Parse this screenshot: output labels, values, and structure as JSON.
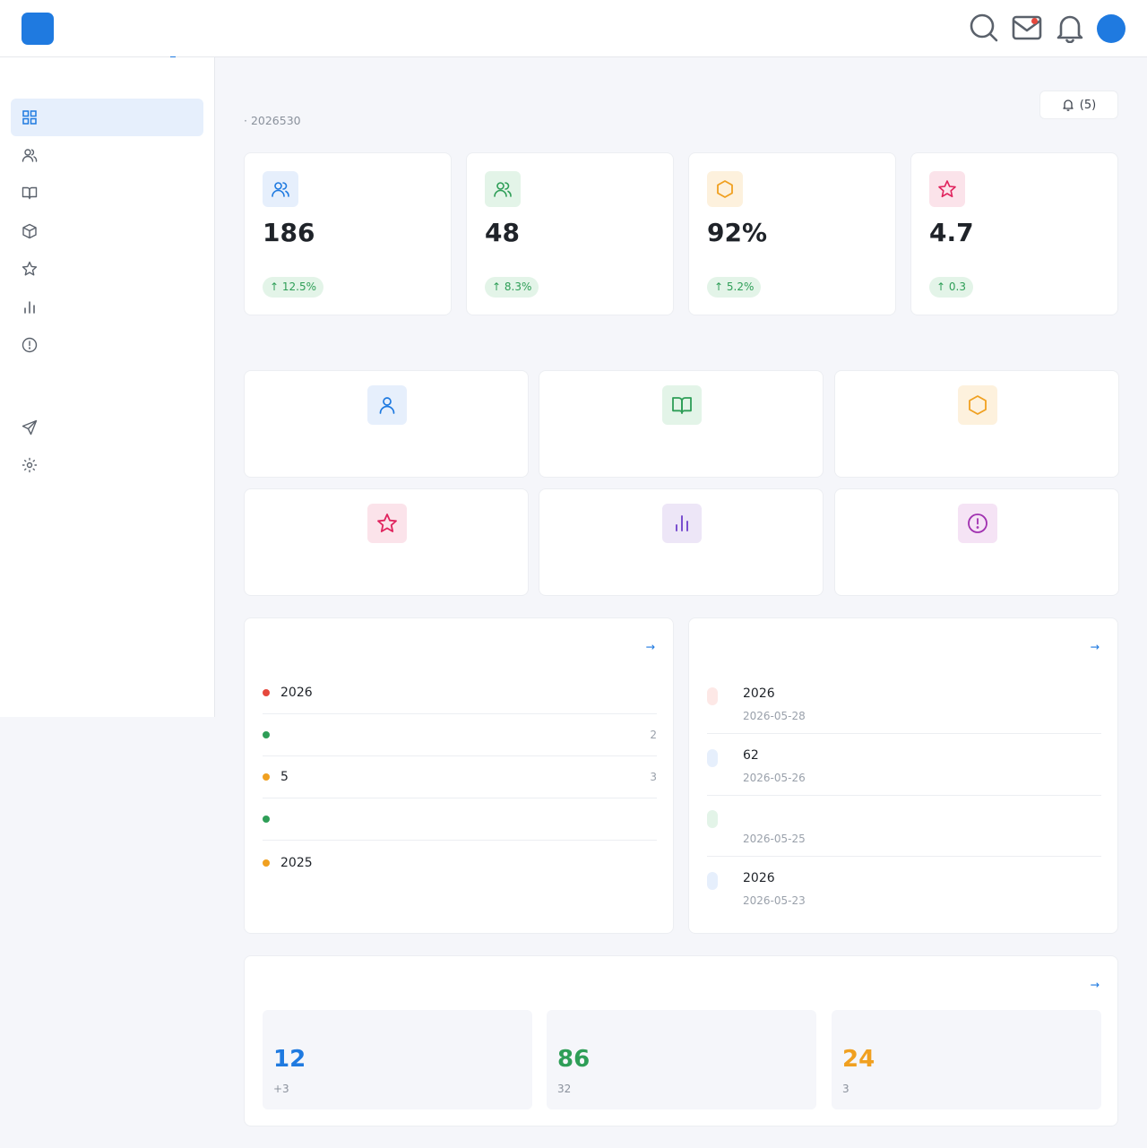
{
  "header": {
    "logo_glyph": "",
    "app_title": "",
    "nav": [
      {
        "label": "",
        "active": true
      },
      {
        "label": ""
      },
      {
        "label": ""
      },
      {
        "label": ""
      },
      {
        "label": ""
      }
    ],
    "avatar_text": "",
    "icons": [
      "search-icon",
      "mail-icon",
      "bell-icon"
    ],
    "mail_unread_dot": true
  },
  "sidebar": {
    "group1_label": "",
    "group2_label": "",
    "items": [
      {
        "label": "",
        "icon": "grid-icon",
        "active": true
      },
      {
        "label": "",
        "icon": "users-icon"
      },
      {
        "label": "",
        "icon": "book-icon"
      },
      {
        "label": "",
        "icon": "cube-icon"
      },
      {
        "label": "",
        "icon": "star-icon"
      },
      {
        "label": "",
        "icon": "bar-chart-icon"
      },
      {
        "label": "",
        "icon": "info-icon"
      }
    ],
    "items2": [
      {
        "label": "",
        "icon": "send-icon"
      },
      {
        "label": "",
        "icon": "settings-icon"
      }
    ]
  },
  "page": {
    "title": "",
    "subtitle": " · 2026530",
    "notice_button": "(5)"
  },
  "stats": [
    {
      "value": "186",
      "label": "",
      "trend": "↑ 12.5% ",
      "icon": "users-icon",
      "color": "#1f7ae0",
      "bg": "#e6effc"
    },
    {
      "value": "48",
      "label": "",
      "trend": "↑ 8.3% ",
      "icon": "users-icon",
      "color": "#2e9e57",
      "bg": "#e3f4e8"
    },
    {
      "value": "92%",
      "label": "",
      "trend": "↑ 5.2% ",
      "icon": "hexagon-icon",
      "color": "#f0a020",
      "bg": "#fdf1dd"
    },
    {
      "value": "4.7",
      "label": "",
      "trend": "↑ 0.3 ",
      "icon": "star-icon",
      "color": "#e0245e",
      "bg": "#fbe3ea"
    }
  ],
  "quick": {
    "title": "",
    "items": [
      {
        "title": "",
        "sub": "",
        "icon": "user-icon",
        "color": "#1f7ae0",
        "bg": "#e6effc"
      },
      {
        "title": "",
        "sub": "",
        "icon": "book-icon",
        "color": "#2e9e57",
        "bg": "#e3f4e8"
      },
      {
        "title": "",
        "sub": "",
        "icon": "hexagon-icon",
        "color": "#f0a020",
        "bg": "#fdf1dd"
      },
      {
        "title": "",
        "sub": "",
        "icon": "star-icon",
        "color": "#e0245e",
        "bg": "#fbe3ea"
      },
      {
        "title": "",
        "sub": "",
        "icon": "bar-chart-icon",
        "color": "#7a4fcf",
        "bg": "#ede6f7"
      },
      {
        "title": "",
        "sub": "",
        "icon": "info-icon",
        "color": "#a030b0",
        "bg": "#f5e3f5"
      }
    ]
  },
  "todo": {
    "title": "",
    "link": " →",
    "items": [
      {
        "text": "2026",
        "time": "",
        "dot": "#e5483d"
      },
      {
        "text": "",
        "time": "2",
        "dot": "#2e9e57"
      },
      {
        "text": "5",
        "time": "3",
        "dot": "#f0a020"
      },
      {
        "text": "",
        "time": "",
        "dot": "#2e9e57"
      },
      {
        "text": "2025",
        "time": "",
        "dot": "#f0a020"
      }
    ]
  },
  "notices": {
    "title": "",
    "link": " →",
    "items": [
      {
        "tag": "",
        "text": "2026",
        "date": "2026-05-28",
        "tag_color": "#e5483d",
        "tag_bg": "#fde8e6"
      },
      {
        "tag": "",
        "text": "62",
        "date": "2026-05-26",
        "tag_color": "#1f7ae0",
        "tag_bg": "#e6effc"
      },
      {
        "tag": "",
        "text": "",
        "date": "2026-05-25",
        "tag_color": "#2e9e57",
        "tag_bg": "#e3f4e8"
      },
      {
        "tag": "",
        "text": "2026",
        "date": "2026-05-23",
        "tag_color": "#1f7ae0",
        "tag_bg": "#e6effc"
      }
    ]
  },
  "overview": {
    "title": "",
    "link": " →",
    "boxes": [
      {
        "label": "",
        "value": "12",
        "note": " +3",
        "color": "#1f7ae0"
      },
      {
        "label": "",
        "value": "86",
        "note": "32",
        "color": "#2e9e57"
      },
      {
        "label": "",
        "value": "24",
        "note": " 3",
        "color": "#f0a020"
      }
    ]
  }
}
